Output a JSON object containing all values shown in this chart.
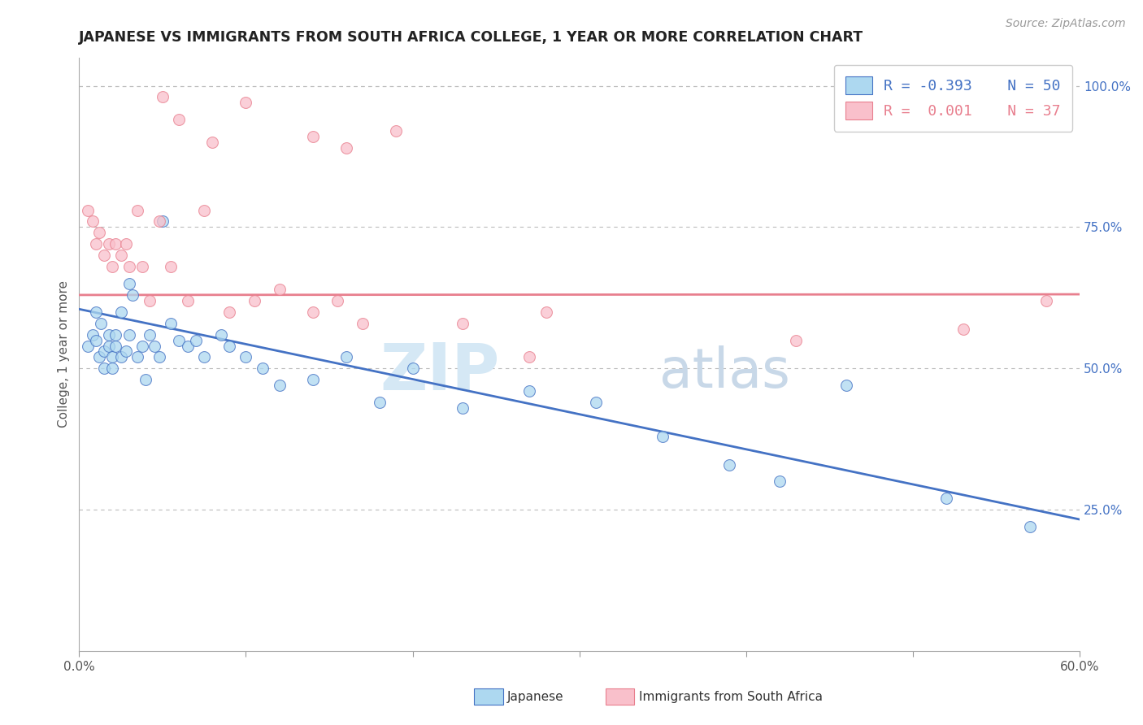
{
  "title": "JAPANESE VS IMMIGRANTS FROM SOUTH AFRICA COLLEGE, 1 YEAR OR MORE CORRELATION CHART",
  "source": "Source: ZipAtlas.com",
  "ylabel": "College, 1 year or more",
  "xlim": [
    0.0,
    0.6
  ],
  "ylim": [
    0.0,
    1.05
  ],
  "xtick_labels": [
    "0.0%",
    "",
    "",
    "",
    "",
    "",
    "60.0%"
  ],
  "xtick_values": [
    0.0,
    0.1,
    0.2,
    0.3,
    0.4,
    0.5,
    0.6
  ],
  "ytick_labels_right": [
    "25.0%",
    "50.0%",
    "75.0%",
    "100.0%"
  ],
  "ytick_values_right": [
    0.25,
    0.5,
    0.75,
    1.0
  ],
  "blue_color": "#ADD8F0",
  "pink_color": "#F9C0CB",
  "blue_line_color": "#4472C4",
  "pink_line_color": "#E87F8E",
  "blue_text_color": "#4472C4",
  "pink_text_color": "#E87F8E",
  "watermark_color": "#E0E8F0",
  "bg_color": "#FFFFFF",
  "grid_color": "#BBBBBB",
  "japanese_x": [
    0.005,
    0.008,
    0.01,
    0.01,
    0.012,
    0.013,
    0.015,
    0.015,
    0.018,
    0.018,
    0.02,
    0.02,
    0.022,
    0.022,
    0.025,
    0.025,
    0.028,
    0.03,
    0.03,
    0.032,
    0.035,
    0.038,
    0.04,
    0.042,
    0.045,
    0.048,
    0.05,
    0.055,
    0.06,
    0.065,
    0.07,
    0.075,
    0.085,
    0.09,
    0.1,
    0.11,
    0.12,
    0.14,
    0.16,
    0.18,
    0.2,
    0.23,
    0.27,
    0.31,
    0.35,
    0.39,
    0.42,
    0.46,
    0.52,
    0.57
  ],
  "japanese_y": [
    0.54,
    0.56,
    0.6,
    0.55,
    0.52,
    0.58,
    0.5,
    0.53,
    0.56,
    0.54,
    0.52,
    0.5,
    0.54,
    0.56,
    0.6,
    0.52,
    0.53,
    0.65,
    0.56,
    0.63,
    0.52,
    0.54,
    0.48,
    0.56,
    0.54,
    0.52,
    0.76,
    0.58,
    0.55,
    0.54,
    0.55,
    0.52,
    0.56,
    0.54,
    0.52,
    0.5,
    0.47,
    0.48,
    0.52,
    0.44,
    0.5,
    0.43,
    0.46,
    0.44,
    0.38,
    0.33,
    0.3,
    0.47,
    0.27,
    0.22
  ],
  "sa_x": [
    0.005,
    0.008,
    0.01,
    0.012,
    0.015,
    0.018,
    0.02,
    0.022,
    0.025,
    0.028,
    0.03,
    0.035,
    0.038,
    0.042,
    0.048,
    0.055,
    0.065,
    0.075,
    0.09,
    0.105,
    0.12,
    0.14,
    0.155,
    0.17,
    0.19,
    0.14,
    0.16,
    0.1,
    0.58,
    0.23,
    0.27,
    0.05,
    0.06,
    0.08,
    0.28,
    0.43,
    0.53
  ],
  "sa_y": [
    0.78,
    0.76,
    0.72,
    0.74,
    0.7,
    0.72,
    0.68,
    0.72,
    0.7,
    0.72,
    0.68,
    0.78,
    0.68,
    0.62,
    0.76,
    0.68,
    0.62,
    0.78,
    0.6,
    0.62,
    0.64,
    0.6,
    0.62,
    0.58,
    0.92,
    0.91,
    0.89,
    0.97,
    0.62,
    0.58,
    0.52,
    0.98,
    0.94,
    0.9,
    0.6,
    0.55,
    0.57
  ],
  "pink_line_y_intercept": 0.63,
  "pink_line_slope": 0.002,
  "blue_line_y_intercept": 0.605,
  "blue_line_slope": -0.62
}
